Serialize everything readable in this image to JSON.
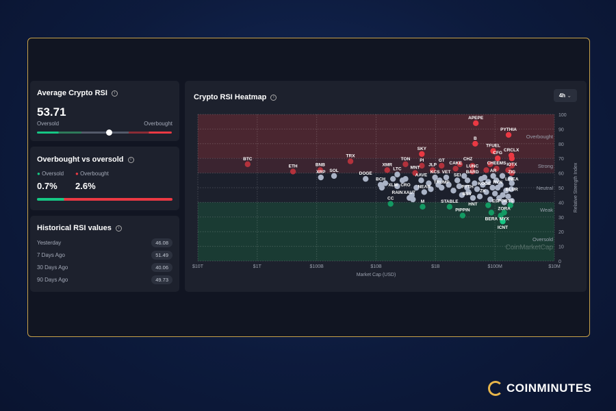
{
  "avg_rsi": {
    "title": "Average Crypto RSI",
    "value": "53.71",
    "left_label": "Oversold",
    "right_label": "Overbought",
    "level": 53.71
  },
  "ob_os": {
    "title": "Overbought vs oversold",
    "oversold_label": "Oversold",
    "overbought_label": "Overbought",
    "oversold_value": "0.7%",
    "overbought_value": "2.6%",
    "colors": {
      "oversold": "#16c784",
      "overbought": "#ea3943"
    }
  },
  "historical": {
    "title": "Historical RSI values",
    "rows": [
      {
        "label": "Yesterday",
        "value": "46.08"
      },
      {
        "label": "7 Days Ago",
        "value": "51.49"
      },
      {
        "label": "30 Days Ago",
        "value": "40.06"
      },
      {
        "label": "90 Days Ago",
        "value": "49.73"
      }
    ]
  },
  "heatmap": {
    "title": "Crypto RSI Heatmap",
    "timeframe": "4h",
    "watermark": "CoinMarketCap"
  },
  "logo": "COINMINUTES",
  "chart_data": {
    "type": "scatter",
    "xlabel": "Market Cap (USD)",
    "ylabel": "Relative Strength Index",
    "x_scale": "log",
    "x_reversed": true,
    "xlim": [
      10000000000000.0,
      10000000.0
    ],
    "ylim": [
      0,
      100
    ],
    "x_ticks": [
      {
        "v": 10000000000000.0,
        "l": "$10T"
      },
      {
        "v": 1000000000000.0,
        "l": "$1T"
      },
      {
        "v": 100000000000.0,
        "l": "$100B"
      },
      {
        "v": 10000000000.0,
        "l": "$10B"
      },
      {
        "v": 1000000000.0,
        "l": "$1B"
      },
      {
        "v": 100000000.0,
        "l": "$100M"
      },
      {
        "v": 10000000.0,
        "l": "$10M"
      }
    ],
    "y_ticks": [
      0,
      10,
      20,
      30,
      40,
      50,
      60,
      70,
      80,
      90,
      100
    ],
    "zones": [
      {
        "name": "Overbought",
        "from": 70,
        "to": 100,
        "color": "#4a2630"
      },
      {
        "name": "Strong",
        "from": 60,
        "to": 70,
        "color": "#3b2430"
      },
      {
        "name": "Neutral",
        "from": 40,
        "to": 60,
        "color": "#1c202c"
      },
      {
        "name": "Weak",
        "from": 30,
        "to": 40,
        "color": "#1b3a34"
      },
      {
        "name": "Oversold",
        "from": 0,
        "to": 30,
        "color": "#1a3b33"
      }
    ],
    "grid": true,
    "colors": {
      "overbought": "#ea3943",
      "strong": "#b3323c",
      "neutral": "#aab3c6",
      "weak": "#139a63",
      "oversold": "#16c784"
    },
    "points": [
      {
        "n": "BTC",
        "x": 1450000000000.0,
        "y": 66
      },
      {
        "n": "ETH",
        "x": 250000000000.0,
        "y": 61
      },
      {
        "n": "BNB",
        "x": 87000000000.0,
        "y": 62
      },
      {
        "n": "XRP",
        "x": 85000000000.0,
        "y": 57
      },
      {
        "n": "SOL",
        "x": 51000000000.0,
        "y": 58
      },
      {
        "n": "TRX",
        "x": 27000000000.0,
        "y": 68
      },
      {
        "n": "DOGE",
        "x": 15000000000.0,
        "y": 56
      },
      {
        "n": "BCH",
        "x": 8400000000.0,
        "y": 52
      },
      {
        "n": "XMR",
        "x": 6500000000.0,
        "y": 62
      },
      {
        "n": "LTC",
        "x": 4400000000.0,
        "y": 59
      },
      {
        "n": "XLM",
        "x": 5200000000.0,
        "y": 56
      },
      {
        "n": "CRO",
        "x": 3200000000.0,
        "y": 56
      },
      {
        "n": "RAIN",
        "x": 4400000000.0,
        "y": 51
      },
      {
        "n": "TON",
        "x": 3200000000.0,
        "y": 66
      },
      {
        "n": "MNT",
        "x": 2200000000.0,
        "y": 60
      },
      {
        "n": "SKY",
        "x": 1700000000.0,
        "y": 73
      },
      {
        "n": "PI",
        "x": 1700000000.0,
        "y": 65
      },
      {
        "n": "XAUT",
        "x": 2750000000.0,
        "y": 43
      },
      {
        "n": "CC",
        "x": 5700000000.0,
        "y": 39
      },
      {
        "n": "M",
        "x": 1650000000.0,
        "y": 37
      },
      {
        "n": "JLP",
        "x": 1120000000.0,
        "y": 62
      },
      {
        "n": "AAVE",
        "x": 1740000000.0,
        "y": 55
      },
      {
        "n": "NEAR",
        "x": 1550000000.0,
        "y": 47
      },
      {
        "n": "KCS",
        "x": 1020000000.0,
        "y": 57
      },
      {
        "n": "VET",
        "x": 660000000.0,
        "y": 57
      },
      {
        "n": "GT",
        "x": 790000000.0,
        "y": 65
      },
      {
        "n": "TRUMP",
        "x": 790000000.0,
        "y": 50
      },
      {
        "n": "SEI",
        "x": 430000000.0,
        "y": 55
      },
      {
        "n": "CAKE",
        "x": 460000000.0,
        "y": 63
      },
      {
        "n": "CHZ",
        "x": 390000000.0,
        "y": 66
      },
      {
        "n": "BARD",
        "x": 240000000.0,
        "y": 65
      },
      {
        "n": "LUNC",
        "x": 240000000.0,
        "y": 61
      },
      {
        "n": "PYTH",
        "x": 290000000.0,
        "y": 55
      },
      {
        "n": "BSV",
        "x": 295000000.0,
        "y": 50
      },
      {
        "n": "HNT",
        "x": 235000000.0,
        "y": 43
      },
      {
        "n": "STABLE",
        "x": 580000000.0,
        "y": 37
      },
      {
        "n": "PIPPIN",
        "x": 350000000.0,
        "y": 31
      },
      {
        "n": "APEPE",
        "x": 210000000.0,
        "y": 94
      },
      {
        "n": "B",
        "x": 215000000.0,
        "y": 80
      },
      {
        "n": "PYTHIA",
        "x": 59000000.0,
        "y": 86
      },
      {
        "n": "TFUEL",
        "x": 107000000.0,
        "y": 75
      },
      {
        "n": "CFG",
        "x": 90000000.0,
        "y": 70
      },
      {
        "n": "CHEEMS",
        "x": 94000000.0,
        "y": 63
      },
      {
        "n": "KOGE",
        "x": 150000000.0,
        "y": 57
      },
      {
        "n": "ZK",
        "x": 160000000.0,
        "y": 52
      },
      {
        "n": "AR",
        "x": 107000000.0,
        "y": 58
      },
      {
        "n": "RVN",
        "x": 90000000.0,
        "y": 50
      },
      {
        "n": "CRCLX",
        "x": 53000000.0,
        "y": 72
      },
      {
        "n": "IOTX",
        "x": 52000000.0,
        "y": 70
      },
      {
        "n": "ZIG",
        "x": 52000000.0,
        "y": 65
      },
      {
        "n": "LINEA",
        "x": 52000000.0,
        "y": 60
      },
      {
        "n": "BLUR",
        "x": 52000000.0,
        "y": 53
      },
      {
        "n": "ESPORTS",
        "x": 74000000.0,
        "y": 45
      },
      {
        "n": "ZORA",
        "x": 70000000.0,
        "y": 40
      },
      {
        "n": "BERA",
        "x": 115000000.0,
        "y": 33
      },
      {
        "n": "MYX",
        "x": 70000000.0,
        "y": 33
      },
      {
        "n": "ICNT",
        "x": 74000000.0,
        "y": 27
      },
      {
        "n": "",
        "x": 8000000000.0,
        "y": 50
      },
      {
        "n": "",
        "x": 7000000000.0,
        "y": 53
      },
      {
        "n": "",
        "x": 3600000000.0,
        "y": 55
      },
      {
        "n": "",
        "x": 2500000000.0,
        "y": 45
      },
      {
        "n": "",
        "x": 2400000000.0,
        "y": 42
      },
      {
        "n": "",
        "x": 2100000000.0,
        "y": 50
      },
      {
        "n": "",
        "x": 1300000000.0,
        "y": 53
      },
      {
        "n": "",
        "x": 1200000000.0,
        "y": 49
      },
      {
        "n": "",
        "x": 900000000.0,
        "y": 52
      },
      {
        "n": "",
        "x": 850000000.0,
        "y": 55
      },
      {
        "n": "",
        "x": 600000000.0,
        "y": 52
      },
      {
        "n": "",
        "x": 500000000.0,
        "y": 48
      },
      {
        "n": "",
        "x": 400000000.0,
        "y": 51
      },
      {
        "n": "",
        "x": 360000000.0,
        "y": 45
      },
      {
        "n": "",
        "x": 330000000.0,
        "y": 58
      },
      {
        "n": "",
        "x": 280000000.0,
        "y": 47
      },
      {
        "n": "",
        "x": 220000000.0,
        "y": 53
      },
      {
        "n": "",
        "x": 200000000.0,
        "y": 49
      },
      {
        "n": "",
        "x": 180000000.0,
        "y": 44
      },
      {
        "n": "",
        "x": 170000000.0,
        "y": 56
      },
      {
        "n": "",
        "x": 140000000.0,
        "y": 47
      },
      {
        "n": "",
        "x": 130000000.0,
        "y": 54
      },
      {
        "n": "",
        "x": 120000000.0,
        "y": 42
      },
      {
        "n": "",
        "x": 110000000.0,
        "y": 50
      },
      {
        "n": "",
        "x": 100000000.0,
        "y": 46
      },
      {
        "n": "",
        "x": 95000000.0,
        "y": 55
      },
      {
        "n": "",
        "x": 85000000.0,
        "y": 43
      },
      {
        "n": "",
        "x": 80000000.0,
        "y": 52
      },
      {
        "n": "",
        "x": 75000000.0,
        "y": 58
      },
      {
        "n": "",
        "x": 65000000.0,
        "y": 48
      },
      {
        "n": "",
        "x": 60000000.0,
        "y": 44
      },
      {
        "n": "",
        "x": 55000000.0,
        "y": 56
      },
      {
        "n": "",
        "x": 53000000.0,
        "y": 49
      },
      {
        "n": "",
        "x": 52000000.0,
        "y": 41
      },
      {
        "n": "",
        "x": 140000000.0,
        "y": 62
      },
      {
        "n": "",
        "x": 120000000.0,
        "y": 66
      },
      {
        "n": "",
        "x": 60000000.0,
        "y": 62
      },
      {
        "n": "",
        "x": 130000000.0,
        "y": 38
      },
      {
        "n": "",
        "x": 55000000.0,
        "y": 38
      },
      {
        "n": "",
        "x": 80000000.0,
        "y": 31
      }
    ]
  }
}
